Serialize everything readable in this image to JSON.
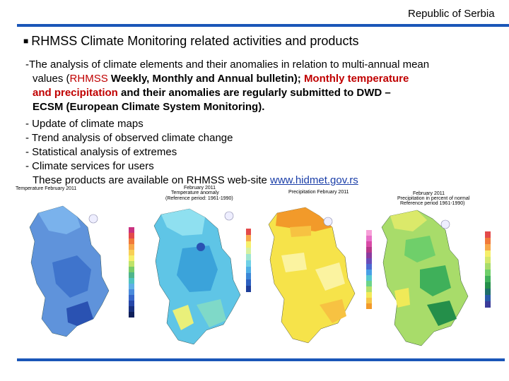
{
  "header": {
    "country": "Republic of Serbia"
  },
  "slide": {
    "heading": "RHMSS Climate Monitoring related activities and products",
    "para": {
      "p1": "-The analysis of climate elements and their anomalies in relation to multi-annual mean",
      "p2": "values (",
      "p3": "RHMSS",
      "p4": " Weekly, Monthly and Annual bulletin); ",
      "p5": "Monthly temperature",
      "p6": "and precipitation",
      "p7": " and their anomalies are regularly submitted to DWD –",
      "p8": "ECSM (European Climate System Monitoring)."
    },
    "list": [
      "- Update of climate maps",
      "- Trend analysis of observed climate change",
      "- Statistical analysis of extremes",
      "- Climate services for users"
    ],
    "availability": "These products are available on RHMSS web-site ",
    "website": "www.hidmet.gov.rs"
  },
  "maps": [
    {
      "title": "Temperature  February 2011"
    },
    {
      "title": "February 2011",
      "subtitle": "Temperature anomaly",
      "note": "(Reference period: 1961-1990)"
    },
    {
      "title": "Precipitation  February 2011"
    },
    {
      "title": "February 2011",
      "subtitle": "Precipitation in percent of normal",
      "note": "Reference period 1961-1990)"
    }
  ],
  "colors": {
    "rule": "#1a56b8",
    "accent_red": "#c00000",
    "link": "#1a3ea8"
  }
}
